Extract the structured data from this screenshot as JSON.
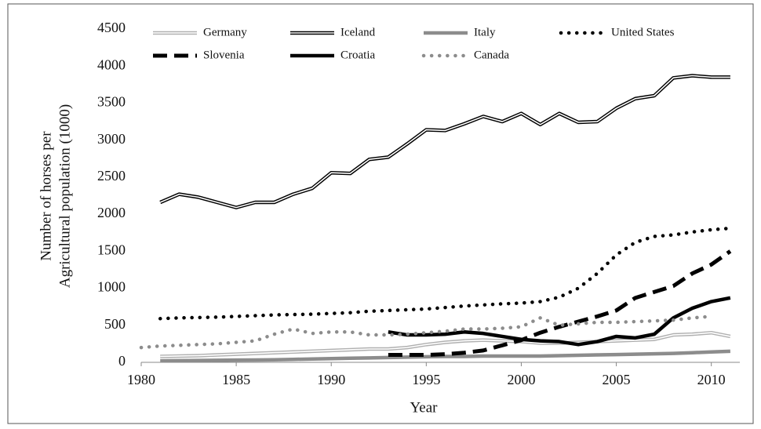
{
  "chart_data": {
    "type": "line",
    "ylabel": [
      "Number of horses per",
      "Agricultural population (1000)"
    ],
    "xlabel": "Year",
    "x": [
      1980,
      1981,
      1982,
      1983,
      1984,
      1985,
      1986,
      1987,
      1988,
      1989,
      1990,
      1991,
      1992,
      1993,
      1994,
      1995,
      1996,
      1997,
      1998,
      1999,
      2000,
      2001,
      2002,
      2003,
      2004,
      2005,
      2006,
      2007,
      2008,
      2009,
      2010,
      2011
    ],
    "xlim": [
      1980,
      2011.5
    ],
    "xticks": [
      1980,
      1985,
      1990,
      1995,
      2000,
      2005,
      2010
    ],
    "ylim": [
      0,
      4500
    ],
    "yticks": [
      0,
      500,
      1000,
      1500,
      2000,
      2500,
      3000,
      3500,
      4000,
      4500
    ],
    "series": [
      {
        "name": "Germany",
        "color": "#b0b0b0",
        "line_style": "double",
        "values": [
          null,
          80,
          85,
          90,
          100,
          110,
          120,
          130,
          140,
          150,
          160,
          170,
          180,
          180,
          200,
          240,
          270,
          290,
          300,
          290,
          280,
          260,
          260,
          270,
          280,
          290,
          300,
          310,
          370,
          380,
          400,
          350
        ]
      },
      {
        "name": "Iceland",
        "color": "#000000",
        "line_style": "double",
        "values": [
          null,
          2160,
          2270,
          2230,
          2160,
          2090,
          2160,
          2160,
          2270,
          2350,
          2560,
          2550,
          2740,
          2770,
          2950,
          3140,
          3130,
          3220,
          3320,
          3250,
          3360,
          3210,
          3360,
          3240,
          3250,
          3430,
          3560,
          3600,
          3840,
          3870,
          3850,
          3850
        ]
      },
      {
        "name": "Italy",
        "color": "#8c8c8c",
        "line_style": "solid",
        "values": [
          null,
          20,
          22,
          25,
          28,
          30,
          32,
          35,
          40,
          45,
          50,
          55,
          60,
          65,
          70,
          75,
          80,
          80,
          85,
          85,
          85,
          85,
          90,
          95,
          100,
          105,
          110,
          115,
          120,
          130,
          140,
          150
        ]
      },
      {
        "name": "United States",
        "color": "#000000",
        "line_style": "dotted",
        "values": [
          null,
          590,
          600,
          605,
          610,
          620,
          630,
          640,
          645,
          650,
          660,
          670,
          690,
          700,
          710,
          720,
          740,
          760,
          775,
          790,
          800,
          820,
          880,
          1000,
          1200,
          1450,
          1620,
          1700,
          1720,
          1760,
          1790,
          1810
        ]
      },
      {
        "name": "Slovenia",
        "color": "#000000",
        "line_style": "dashed",
        "values": [
          null,
          null,
          null,
          null,
          null,
          null,
          null,
          null,
          null,
          null,
          null,
          null,
          null,
          100,
          100,
          100,
          110,
          130,
          160,
          230,
          300,
          400,
          480,
          550,
          620,
          700,
          870,
          950,
          1030,
          1200,
          1320,
          1500
        ]
      },
      {
        "name": "Croatia",
        "color": "#000000",
        "line_style": "solid",
        "values": [
          null,
          null,
          null,
          null,
          null,
          null,
          null,
          null,
          null,
          null,
          null,
          null,
          null,
          410,
          370,
          370,
          380,
          410,
          390,
          350,
          310,
          290,
          280,
          240,
          280,
          350,
          330,
          380,
          600,
          730,
          820,
          870
        ]
      },
      {
        "name": "Canada",
        "color": "#8c8c8c",
        "line_style": "dotted",
        "values": [
          200,
          220,
          230,
          240,
          250,
          270,
          290,
          380,
          450,
          390,
          410,
          410,
          370,
          370,
          380,
          400,
          420,
          450,
          450,
          460,
          480,
          600,
          500,
          520,
          540,
          540,
          550,
          560,
          570,
          600,
          620,
          null
        ]
      }
    ]
  }
}
